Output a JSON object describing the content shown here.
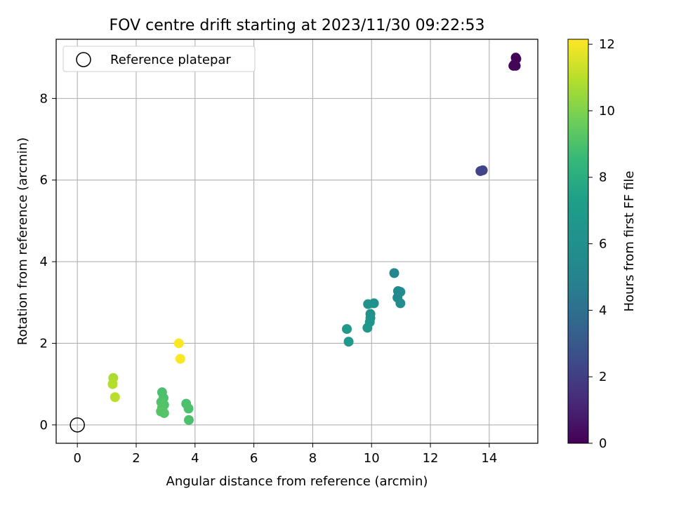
{
  "chart_data": {
    "type": "scatter",
    "title": "FOV centre drift starting at 2023/11/30 09:22:53",
    "xlabel": "Angular distance from reference (arcmin)",
    "ylabel": "Rotation from reference (arcmin)",
    "xlim": [
      -0.72,
      15.65
    ],
    "ylim": [
      -0.45,
      9.45
    ],
    "xticks": [
      "0",
      "2",
      "4",
      "6",
      "8",
      "10",
      "12",
      "14"
    ],
    "yticks": [
      "0",
      "2",
      "4",
      "6",
      "8"
    ],
    "grid": true,
    "legend": {
      "position": "top-left",
      "entries": [
        "Reference platepar"
      ]
    },
    "reference_point": {
      "x": 0,
      "y": 0
    },
    "colorbar": {
      "label": "Hours from first FF file",
      "range": [
        0,
        12.15
      ],
      "ticks": [
        "0",
        "2",
        "4",
        "6",
        "8",
        "10",
        "12"
      ],
      "colormap": "viridis"
    },
    "points": [
      {
        "x": 14.9,
        "y": 9.0,
        "c": 0.05
      },
      {
        "x": 14.92,
        "y": 8.97,
        "c": 0.05
      },
      {
        "x": 14.85,
        "y": 8.83,
        "c": 0.08
      },
      {
        "x": 14.82,
        "y": 8.8,
        "c": 0.1
      },
      {
        "x": 14.9,
        "y": 8.8,
        "c": 0.1
      },
      {
        "x": 13.7,
        "y": 6.22,
        "c": 2.2
      },
      {
        "x": 13.78,
        "y": 6.24,
        "c": 2.25
      },
      {
        "x": 10.77,
        "y": 3.72,
        "c": 5.2
      },
      {
        "x": 10.9,
        "y": 3.28,
        "c": 5.4
      },
      {
        "x": 10.98,
        "y": 3.26,
        "c": 5.5
      },
      {
        "x": 10.88,
        "y": 3.12,
        "c": 5.6
      },
      {
        "x": 10.98,
        "y": 2.98,
        "c": 5.7
      },
      {
        "x": 10.08,
        "y": 2.98,
        "c": 6.1
      },
      {
        "x": 9.88,
        "y": 2.96,
        "c": 6.2
      },
      {
        "x": 9.96,
        "y": 2.72,
        "c": 6.3
      },
      {
        "x": 9.96,
        "y": 2.62,
        "c": 6.4
      },
      {
        "x": 9.94,
        "y": 2.52,
        "c": 6.5
      },
      {
        "x": 9.86,
        "y": 2.38,
        "c": 6.6
      },
      {
        "x": 9.16,
        "y": 2.35,
        "c": 6.7
      },
      {
        "x": 9.22,
        "y": 2.04,
        "c": 6.8
      },
      {
        "x": 2.88,
        "y": 0.8,
        "c": 9.0
      },
      {
        "x": 2.93,
        "y": 0.66,
        "c": 9.0
      },
      {
        "x": 2.85,
        "y": 0.56,
        "c": 9.1
      },
      {
        "x": 2.95,
        "y": 0.49,
        "c": 9.1
      },
      {
        "x": 2.88,
        "y": 0.42,
        "c": 9.1
      },
      {
        "x": 2.84,
        "y": 0.33,
        "c": 9.2
      },
      {
        "x": 2.95,
        "y": 0.29,
        "c": 9.2
      },
      {
        "x": 3.7,
        "y": 0.52,
        "c": 9.0
      },
      {
        "x": 3.78,
        "y": 0.4,
        "c": 9.0
      },
      {
        "x": 3.79,
        "y": 0.12,
        "c": 9.0
      },
      {
        "x": 1.22,
        "y": 1.15,
        "c": 10.8
      },
      {
        "x": 1.2,
        "y": 1.0,
        "c": 10.9
      },
      {
        "x": 1.28,
        "y": 0.68,
        "c": 11.0
      },
      {
        "x": 3.45,
        "y": 2.0,
        "c": 12.1
      },
      {
        "x": 3.5,
        "y": 1.62,
        "c": 12.1
      }
    ]
  }
}
